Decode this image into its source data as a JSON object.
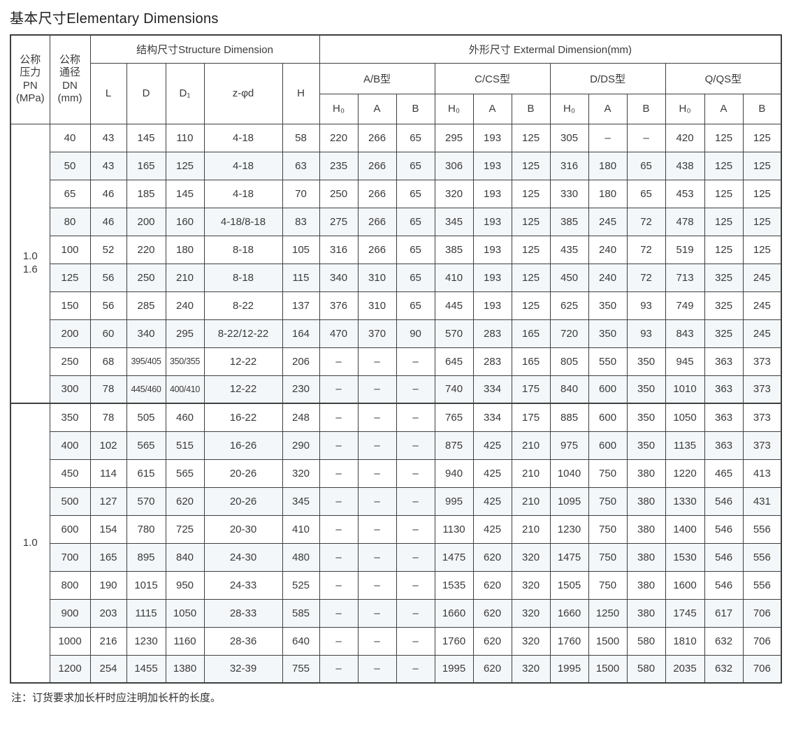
{
  "title": "基本尺寸Elementary Dimensions",
  "note": "注：订货要求加长杆时应注明加长杆的长度。",
  "table": {
    "headers": {
      "pn_lines": [
        "公称",
        "压力",
        "PN",
        "(MPa)"
      ],
      "dn_lines": [
        "公称",
        "通径",
        "DN",
        "(mm)"
      ],
      "structure_group": "结构尺寸Structure Dimension",
      "external_group": "外形尺寸 Extermal Dimension(mm)",
      "structure_cols": [
        "L",
        "D",
        "D₁",
        "z-φd",
        "H"
      ],
      "type_groups": [
        "A/B型",
        "C/CS型",
        "D/DS型",
        "Q/QS型"
      ],
      "sub_cols": [
        "H₀",
        "A",
        "B"
      ]
    },
    "sections": [
      {
        "pn_lines": [
          "1.0",
          "1.6"
        ],
        "rows": [
          [
            "40",
            "43",
            "145",
            "110",
            "4-18",
            "58",
            "220",
            "266",
            "65",
            "295",
            "193",
            "125",
            "305",
            "–",
            "–",
            "420",
            "125",
            "125"
          ],
          [
            "50",
            "43",
            "165",
            "125",
            "4-18",
            "63",
            "235",
            "266",
            "65",
            "306",
            "193",
            "125",
            "316",
            "180",
            "65",
            "438",
            "125",
            "125"
          ],
          [
            "65",
            "46",
            "185",
            "145",
            "4-18",
            "70",
            "250",
            "266",
            "65",
            "320",
            "193",
            "125",
            "330",
            "180",
            "65",
            "453",
            "125",
            "125"
          ],
          [
            "80",
            "46",
            "200",
            "160",
            "4-18/8-18",
            "83",
            "275",
            "266",
            "65",
            "345",
            "193",
            "125",
            "385",
            "245",
            "72",
            "478",
            "125",
            "125"
          ],
          [
            "100",
            "52",
            "220",
            "180",
            "8-18",
            "105",
            "316",
            "266",
            "65",
            "385",
            "193",
            "125",
            "435",
            "240",
            "72",
            "519",
            "125",
            "125"
          ],
          [
            "125",
            "56",
            "250",
            "210",
            "8-18",
            "115",
            "340",
            "310",
            "65",
            "410",
            "193",
            "125",
            "450",
            "240",
            "72",
            "713",
            "325",
            "245"
          ],
          [
            "150",
            "56",
            "285",
            "240",
            "8-22",
            "137",
            "376",
            "310",
            "65",
            "445",
            "193",
            "125",
            "625",
            "350",
            "93",
            "749",
            "325",
            "245"
          ],
          [
            "200",
            "60",
            "340",
            "295",
            "8-22/12-22",
            "164",
            "470",
            "370",
            "90",
            "570",
            "283",
            "165",
            "720",
            "350",
            "93",
            "843",
            "325",
            "245"
          ],
          [
            "250",
            "68",
            "395/405",
            "350/355",
            "12-22",
            "206",
            "–",
            "–",
            "–",
            "645",
            "283",
            "165",
            "805",
            "550",
            "350",
            "945",
            "363",
            "373"
          ],
          [
            "300",
            "78",
            "445/460",
            "400/410",
            "12-22",
            "230",
            "–",
            "–",
            "–",
            "740",
            "334",
            "175",
            "840",
            "600",
            "350",
            "1010",
            "363",
            "373"
          ]
        ]
      },
      {
        "pn_lines": [
          "1.0"
        ],
        "rows": [
          [
            "350",
            "78",
            "505",
            "460",
            "16-22",
            "248",
            "–",
            "–",
            "–",
            "765",
            "334",
            "175",
            "885",
            "600",
            "350",
            "1050",
            "363",
            "373"
          ],
          [
            "400",
            "102",
            "565",
            "515",
            "16-26",
            "290",
            "–",
            "–",
            "–",
            "875",
            "425",
            "210",
            "975",
            "600",
            "350",
            "1135",
            "363",
            "373"
          ],
          [
            "450",
            "114",
            "615",
            "565",
            "20-26",
            "320",
            "–",
            "–",
            "–",
            "940",
            "425",
            "210",
            "1040",
            "750",
            "380",
            "1220",
            "465",
            "413"
          ],
          [
            "500",
            "127",
            "570",
            "620",
            "20-26",
            "345",
            "–",
            "–",
            "–",
            "995",
            "425",
            "210",
            "1095",
            "750",
            "380",
            "1330",
            "546",
            "431"
          ],
          [
            "600",
            "154",
            "780",
            "725",
            "20-30",
            "410",
            "–",
            "–",
            "–",
            "1130",
            "425",
            "210",
            "1230",
            "750",
            "380",
            "1400",
            "546",
            "556"
          ],
          [
            "700",
            "165",
            "895",
            "840",
            "24-30",
            "480",
            "–",
            "–",
            "–",
            "1475",
            "620",
            "320",
            "1475",
            "750",
            "380",
            "1530",
            "546",
            "556"
          ],
          [
            "800",
            "190",
            "1015",
            "950",
            "24-33",
            "525",
            "–",
            "–",
            "–",
            "1535",
            "620",
            "320",
            "1505",
            "750",
            "380",
            "1600",
            "546",
            "556"
          ],
          [
            "900",
            "203",
            "1115",
            "1050",
            "28-33",
            "585",
            "–",
            "–",
            "–",
            "1660",
            "620",
            "320",
            "1660",
            "1250",
            "380",
            "1745",
            "617",
            "706"
          ],
          [
            "1000",
            "216",
            "1230",
            "1160",
            "28-36",
            "640",
            "–",
            "–",
            "–",
            "1760",
            "620",
            "320",
            "1760",
            "1500",
            "580",
            "1810",
            "632",
            "706"
          ],
          [
            "1200",
            "254",
            "1455",
            "1380",
            "32-39",
            "755",
            "–",
            "–",
            "–",
            "1995",
            "620",
            "320",
            "1995",
            "1500",
            "580",
            "2035",
            "632",
            "706"
          ]
        ]
      }
    ]
  }
}
